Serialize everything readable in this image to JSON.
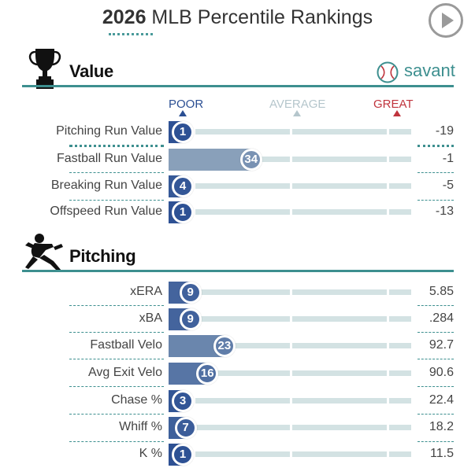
{
  "header": {
    "title_year": "2026",
    "title_rest": " MLB Percentile Rankings",
    "play_icon": "play-icon"
  },
  "brand": {
    "name": "savant",
    "icon": "baseball-icon",
    "color": "#3d8f8f"
  },
  "scale": {
    "poor": "POOR",
    "average": "AVERAGE",
    "great": "GREAT"
  },
  "colors": {
    "accent": "#3d8f8f",
    "track": "#d3e2e3",
    "poor": "#2b4f93",
    "average": "#b5c6cc",
    "great": "#c0343d"
  },
  "sections": [
    {
      "label": "Value",
      "icon": "trophy-icon",
      "rows": [
        {
          "name": "Pitching Run Value",
          "percentile": 1,
          "value": "-19"
        },
        {
          "name": "Fastball Run Value",
          "percentile": 34,
          "value": "-1"
        },
        {
          "name": "Breaking Run Value",
          "percentile": 4,
          "value": "-5"
        },
        {
          "name": "Offspeed Run Value",
          "percentile": 1,
          "value": "-13"
        }
      ]
    },
    {
      "label": "Pitching",
      "icon": "pitcher-icon",
      "rows": [
        {
          "name": "xERA",
          "percentile": 9,
          "value": "5.85"
        },
        {
          "name": "xBA",
          "percentile": 9,
          "value": ".284"
        },
        {
          "name": "Fastball Velo",
          "percentile": 23,
          "value": "92.7"
        },
        {
          "name": "Avg Exit Velo",
          "percentile": 16,
          "value": "90.6"
        },
        {
          "name": "Chase %",
          "percentile": 3,
          "value": "22.4"
        },
        {
          "name": "Whiff %",
          "percentile": 7,
          "value": "18.2"
        },
        {
          "name": "K %",
          "percentile": 1,
          "value": "11.5"
        }
      ]
    }
  ]
}
